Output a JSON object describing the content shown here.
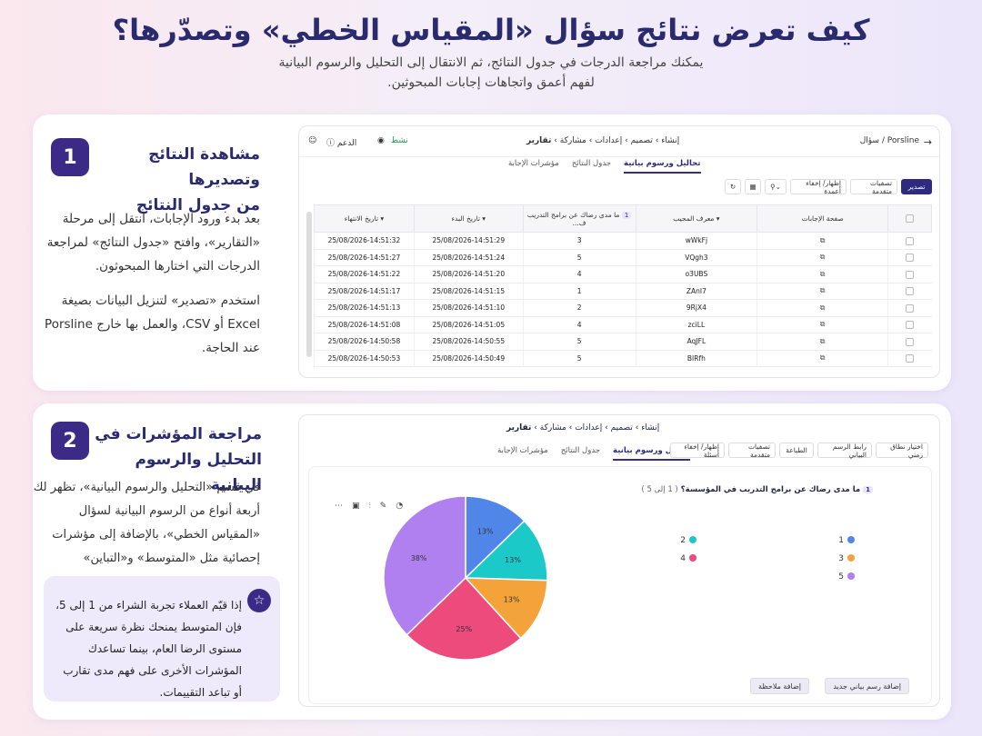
{
  "header": {
    "title": "كيف تعرض نتائج سؤال «المقياس الخطي» وتصدّرها؟",
    "subtitle_line1": "يمكنك مراجعة الدرجات في جدول النتائج، ثم الانتقال إلى التحليل والرسوم البيانية",
    "subtitle_line2": "لفهم أعمق واتجاهات إجابات المبحوثين."
  },
  "step1": {
    "number": "1",
    "title_line1": "مشاهدة النتائج وتصديرها",
    "title_line2": "من جدول النتائج",
    "para1": "بعد بدء ورود الإجابات، انتقل إلى مرحلة «التقارير»، وافتح «جدول النتائج» لمراجعة الدرجات التي اختارها المبحوثون.",
    "para2": "استخدم «تصدير» لتنزيل البيانات بصيغة Excel أو CSV، والعمل بها خارج Porsline عند الحاجة."
  },
  "step2": {
    "number": "2",
    "title_line1": "مراجعة المؤشرات في",
    "title_line2": "التحليل والرسوم البيانية",
    "para": "في قسم «التحليل والرسوم البيانية»، تظهر لك أربعة أنواع من الرسوم البيانية لسؤال «المقياس الخطي»، بالإضافة إلى مؤشرات إحصائية مثل «المتوسط» و«التباين» و«الانحراف المعياري».",
    "note": "إذا قيّم العملاء تجربة الشراء من 1 إلى 5، فإن المتوسط يمنحك نظرة سريعة على مستوى الرضا العام، بينما تساعدك المؤشرات الأخرى على فهم مدى تقارب أو تباعد التقييمات."
  },
  "shot1": {
    "brand": "Porsline",
    "breadcrumb_sep": "/",
    "question_crumb": "سؤال",
    "nav": [
      "إنشاء",
      "تصميم",
      "إعدادات",
      "مشاركة",
      "تقارير"
    ],
    "nav_sep": "›",
    "status": "نشط",
    "support": "الدعم",
    "tabs": [
      "تحاليل ورسوم بيانية",
      "جدول النتائج",
      "مؤشرات الإجابة"
    ],
    "toolbar": {
      "export": "تصدير",
      "advanced_filters": "تصفيات متقدمة",
      "show_hide_columns": "إظهار/ إخفاء أعمدة"
    },
    "table": {
      "headers": [
        "صفحة الإجابات",
        "معرف المجيب",
        "ما مدى رضاك عن برامج التدريب ف...",
        "تاريخ البدء",
        "تاريخ الانتهاء"
      ],
      "q_chip": "1",
      "rows": [
        {
          "id": "wWkFj",
          "score": "3",
          "start": "25/08/2026-14:51:29",
          "end": "25/08/2026-14:51:32"
        },
        {
          "id": "VQgh3",
          "score": "5",
          "start": "25/08/2026-14:51:24",
          "end": "25/08/2026-14:51:27"
        },
        {
          "id": "o3UBS",
          "score": "4",
          "start": "25/08/2026-14:51:20",
          "end": "25/08/2026-14:51:22"
        },
        {
          "id": "ZAnI7",
          "score": "1",
          "start": "25/08/2026-14:51:15",
          "end": "25/08/2026-14:51:17"
        },
        {
          "id": "9RjX4",
          "score": "2",
          "start": "25/08/2026-14:51:10",
          "end": "25/08/2026-14:51:13"
        },
        {
          "id": "zciLL",
          "score": "4",
          "start": "25/08/2026-14:51:05",
          "end": "25/08/2026-14:51:08"
        },
        {
          "id": "AqJFL",
          "score": "5",
          "start": "25/08/2026-14:50:55",
          "end": "25/08/2026-14:50:58"
        },
        {
          "id": "BIRfh",
          "score": "5",
          "start": "25/08/2026-14:50:49",
          "end": "25/08/2026-14:50:53"
        }
      ]
    }
  },
  "shot2": {
    "nav": [
      "إنشاء",
      "تصميم",
      "إعدادات",
      "مشاركة",
      "تقارير"
    ],
    "nav_sep": "›",
    "tabs": [
      "تحاليل ورسوم بيانية",
      "جدول النتائج",
      "مؤشرات الإجابة"
    ],
    "toolbar": [
      "اختيار نطاق زمني",
      "رابط الرسم البياني",
      "الطباعة",
      "تصفيات متقدمة",
      "إظهار/ إخفاء أسئلة"
    ],
    "question_chip": "1",
    "question": "ما مدى رضاك عن برامج التدريب في المؤسسة؟",
    "scale_hint": "( 1 إلى 5 )",
    "add_chart": "إضافة رسم بياني جديد",
    "add_note": "إضافة ملاحظة"
  },
  "chart_data": {
    "type": "pie",
    "categories": [
      "1",
      "2",
      "3",
      "4",
      "5"
    ],
    "values": [
      13,
      13,
      13,
      25,
      38
    ],
    "labels": [
      "13%",
      "13%",
      "13%",
      "25%",
      "38%"
    ],
    "colors": [
      "#4f86e8",
      "#1cc9c9",
      "#f4a23a",
      "#ec4b7c",
      "#b07ff0"
    ],
    "legend": "right"
  }
}
